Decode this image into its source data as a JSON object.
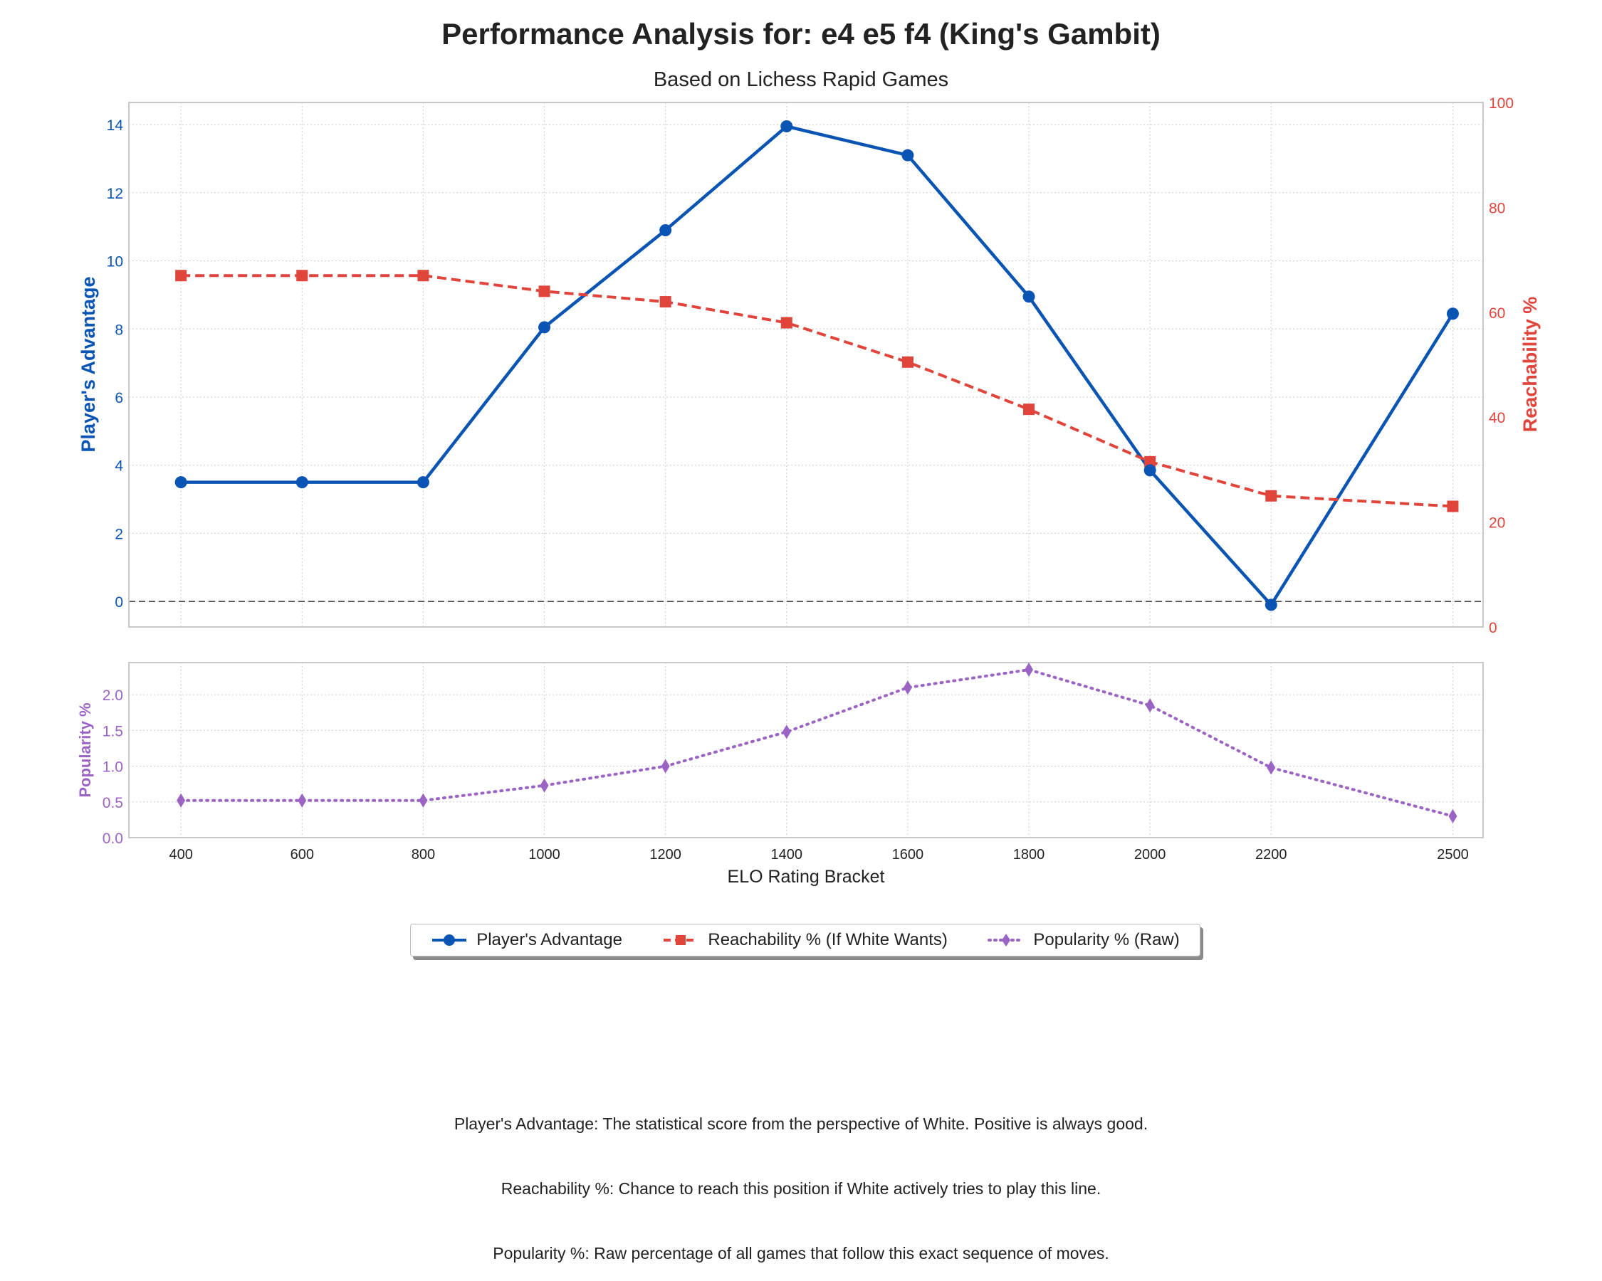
{
  "chart_data": {
    "type": "line",
    "title": "Performance Analysis for: e4 e5 f4 (King's Gambit)",
    "subtitle": "Based on Lichess Rapid Games",
    "xlabel": "ELO Rating Bracket",
    "x": [
      400,
      600,
      800,
      1000,
      1200,
      1400,
      1600,
      1800,
      2000,
      2200,
      2500
    ],
    "x_tick_labels": [
      "400",
      "600",
      "800",
      "1000",
      "1200",
      "1400",
      "1600",
      "1800",
      "2000",
      "2200",
      "2500"
    ],
    "main_panel": {
      "ylabel_left": "Player's Advantage",
      "ylim_left": [
        -0.75,
        14.65
      ],
      "yticks_left": [
        0,
        2,
        4,
        6,
        8,
        10,
        12,
        14
      ],
      "ylabel_right": "Reachability %",
      "ylim_right": [
        0,
        100
      ],
      "yticks_right": [
        0,
        20,
        40,
        60,
        80,
        100
      ],
      "zero_line": true,
      "series": [
        {
          "name": "Player's Advantage",
          "axis": "left",
          "color": "#0a55b3",
          "marker": "circle",
          "style": "solid",
          "values": [
            3.5,
            3.5,
            3.5,
            8.05,
            10.9,
            13.95,
            13.1,
            8.95,
            3.85,
            -0.1,
            8.45
          ]
        },
        {
          "name": "Reachability % (If White Wants)",
          "axis": "right",
          "color": "#e0443a",
          "marker": "square",
          "style": "dashed",
          "values": [
            67.0,
            67.0,
            67.0,
            64.0,
            62.0,
            58.0,
            50.5,
            41.5,
            31.5,
            25.0,
            23.0
          ]
        }
      ]
    },
    "popularity_panel": {
      "ylabel": "Popularity %",
      "ylim": [
        0,
        2.45
      ],
      "yticks": [
        0.0,
        0.5,
        1.0,
        1.5,
        2.0
      ],
      "ytick_labels": [
        "0.0",
        "0.5",
        "1.0",
        "1.5",
        "2.0"
      ],
      "series": [
        {
          "name": "Popularity % (Raw)",
          "color": "#9b63c4",
          "marker": "diamond",
          "style": "dotted",
          "values": [
            0.52,
            0.52,
            0.52,
            0.73,
            1.0,
            1.48,
            2.1,
            2.35,
            1.85,
            0.98,
            0.3
          ]
        }
      ]
    },
    "grid": true,
    "legend": [
      "Player's Advantage",
      "Reachability % (If White Wants)",
      "Popularity % (Raw)"
    ],
    "legend_placement": "bottom-center"
  },
  "footnotes": [
    "Player's Advantage: The statistical score from the perspective of White. Positive is always good.",
    "Reachability %: Chance to reach this position if White actively tries to play this line.",
    "Popularity %: Raw percentage of all games that follow this exact sequence of moves."
  ]
}
